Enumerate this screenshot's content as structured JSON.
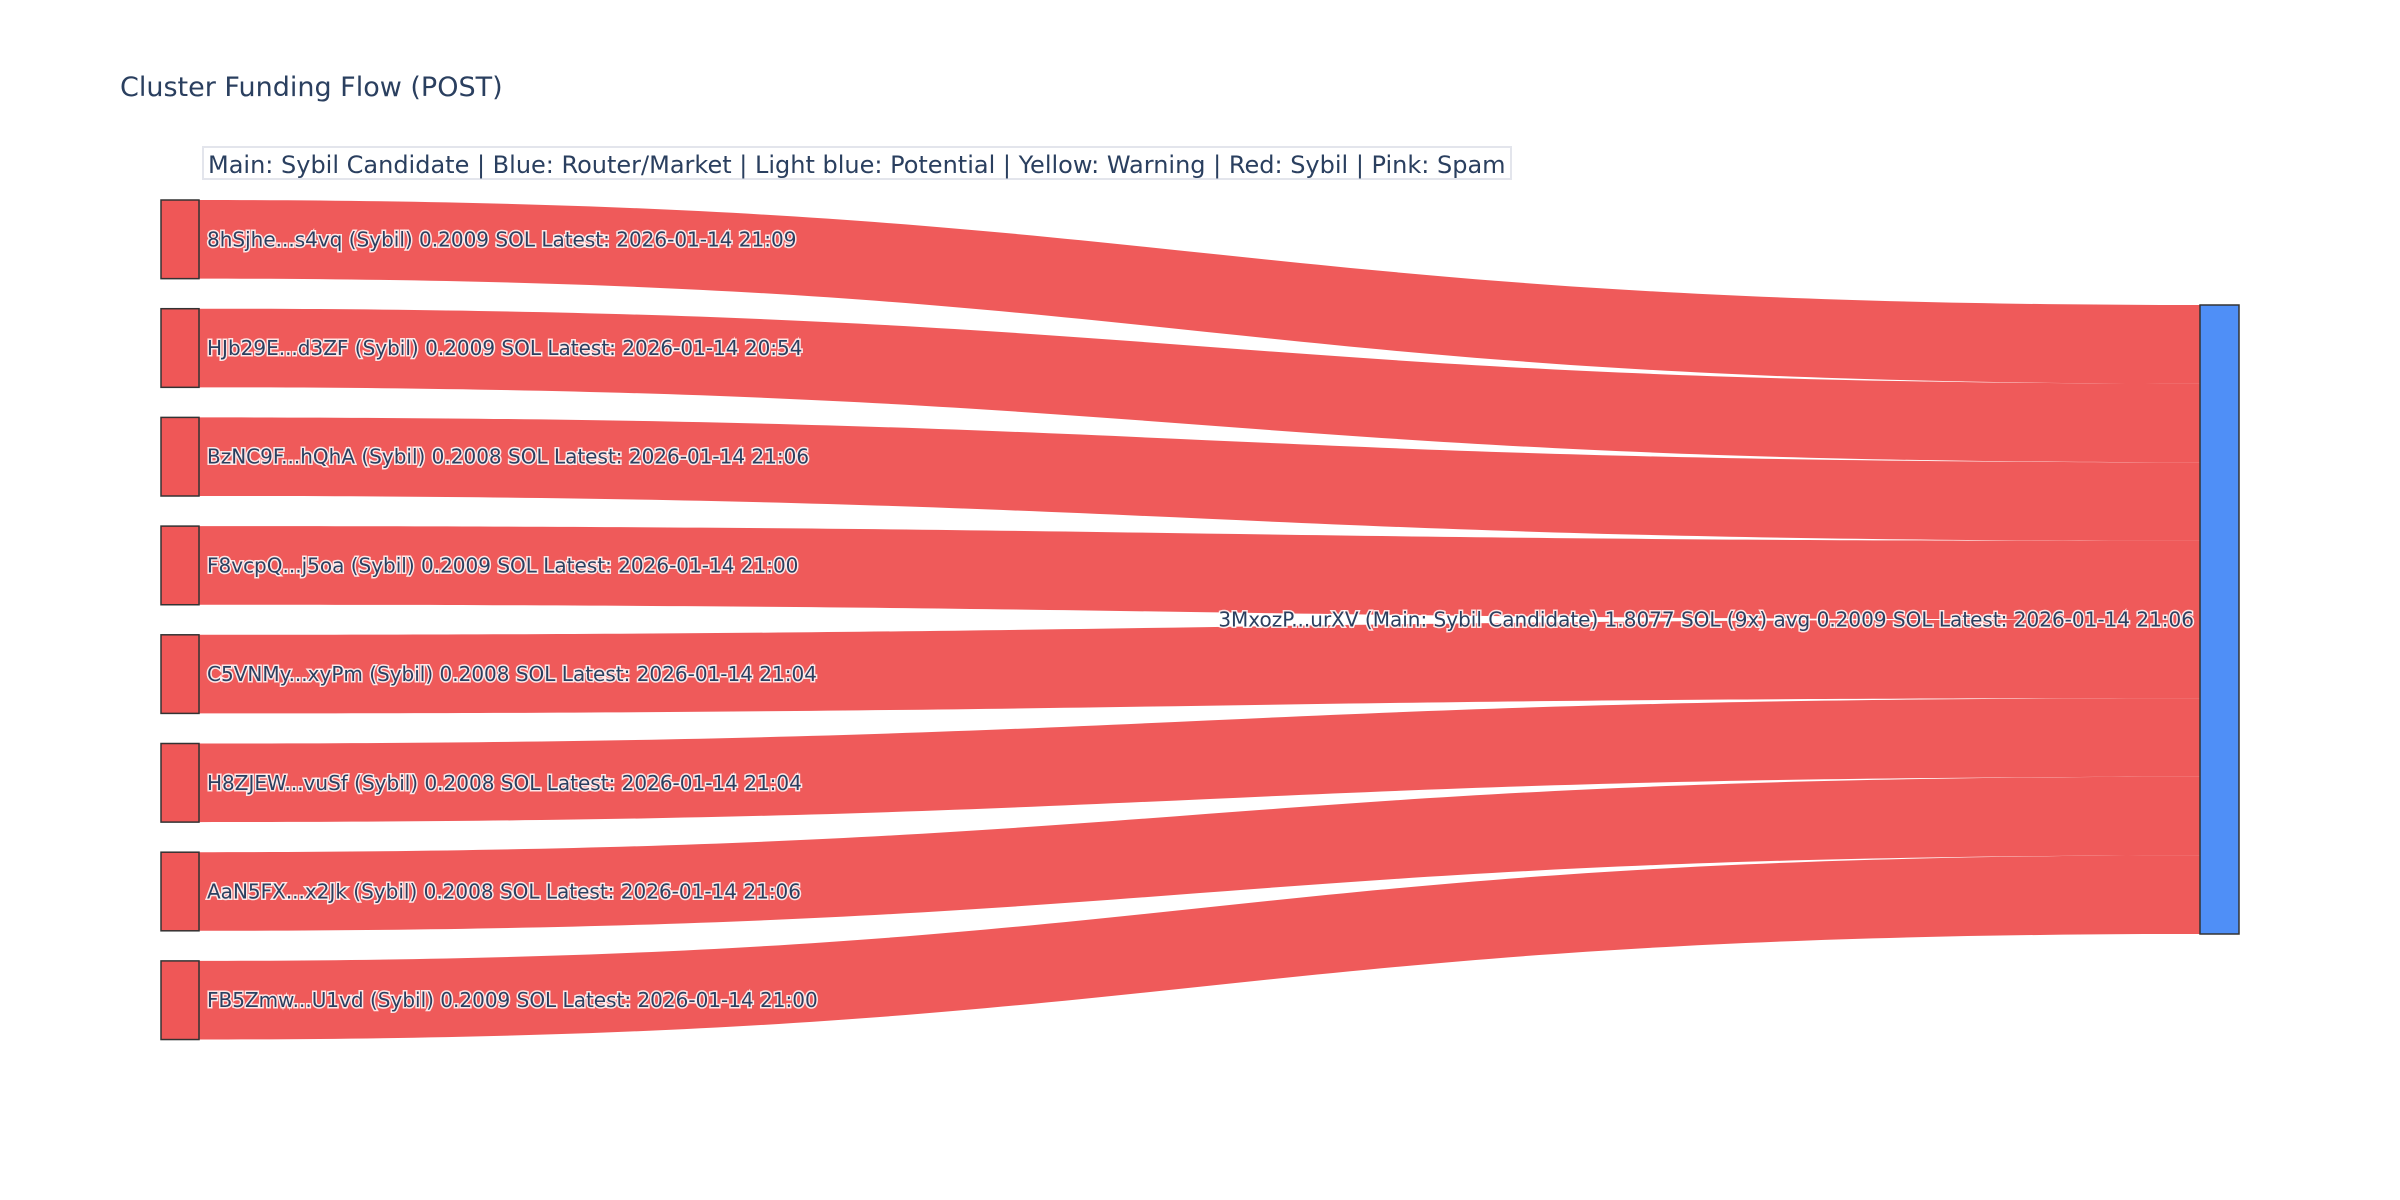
{
  "title": "Cluster Funding Flow (POST)",
  "legend_annotation": "Main: Sybil Candidate  |  Blue: Router/Market | Light blue: Potential | Yellow: Warning | Red: Sybil | Pink: Spam",
  "colors": {
    "sybil": "#ef5757",
    "main": "#4f8ff7",
    "link": "#ef5757",
    "node_border": "#333333"
  },
  "sources": [
    {
      "label": "8hSjhe...s4vq (Sybil) 0.2009 SOL Latest: 2026-01-14 21:09",
      "value": 0.2009
    },
    {
      "label": "HJb29E...d3ZF (Sybil) 0.2009 SOL Latest: 2026-01-14 20:54",
      "value": 0.2009
    },
    {
      "label": "BzNC9F...hQhA (Sybil) 0.2008 SOL Latest: 2026-01-14 21:06",
      "value": 0.2008
    },
    {
      "label": "F8vcpQ...j5oa (Sybil) 0.2009 SOL Latest: 2026-01-14 21:00",
      "value": 0.2009
    },
    {
      "label": "C5VNMy...xyPm (Sybil) 0.2008 SOL Latest: 2026-01-14 21:04",
      "value": 0.2008
    },
    {
      "label": "H8ZJEW...vuSf (Sybil) 0.2008 SOL Latest: 2026-01-14 21:04",
      "value": 0.2008
    },
    {
      "label": "AaN5FX...x2Jk (Sybil) 0.2008 SOL Latest: 2026-01-14 21:06",
      "value": 0.2008
    },
    {
      "label": "FB5Zmw...U1vd (Sybil) 0.2009 SOL Latest: 2026-01-14 21:00",
      "value": 0.2009
    }
  ],
  "target": {
    "label": "3MxozP...urXV (Main: Sybil Candidate) 1.8077 SOL (9x) avg 0.2009 SOL Latest: 2026-01-14 21:06"
  }
}
